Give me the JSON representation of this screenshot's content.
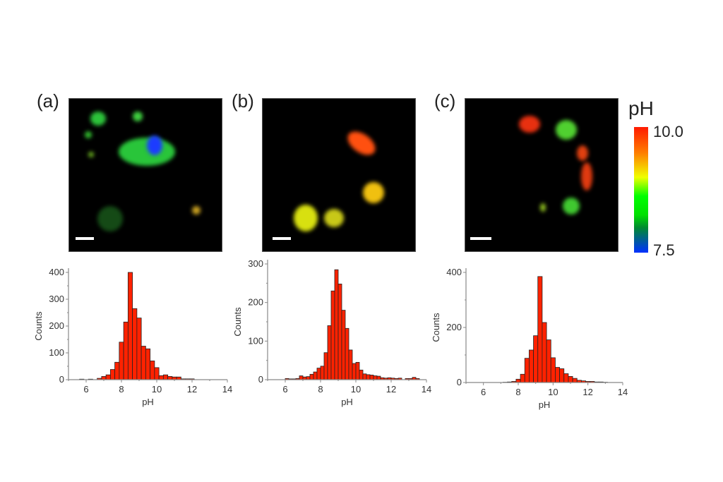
{
  "panels": [
    {
      "label": "(a)"
    },
    {
      "label": "(b)"
    },
    {
      "label": "(c)"
    }
  ],
  "colorbar": {
    "title": "pH",
    "max_label": "10.0",
    "min_label": "7.5",
    "colors": [
      "#ff1a00",
      "#ff7a00",
      "#f0ff00",
      "#00ff00",
      "#008a30",
      "#0030ff"
    ]
  },
  "bar_color": "#ff2200",
  "chart_data": [
    {
      "type": "bar",
      "panel": "(a)",
      "title": "",
      "xlabel": "pH",
      "ylabel": "Counts",
      "xlim": [
        5,
        14
      ],
      "ylim": [
        0,
        420
      ],
      "xticks": [
        6,
        8,
        10,
        12,
        14
      ],
      "yticks": [
        0,
        100,
        200,
        300,
        400
      ],
      "bin_width": 0.25,
      "x": [
        5.75,
        6.25,
        6.75,
        7.0,
        7.25,
        7.5,
        7.75,
        8.0,
        8.25,
        8.5,
        8.75,
        9.0,
        9.25,
        9.5,
        9.75,
        10.0,
        10.25,
        10.5,
        10.75,
        11.0,
        11.25,
        11.5,
        11.75,
        12.0
      ],
      "values": [
        2,
        2,
        5,
        12,
        18,
        38,
        65,
        140,
        215,
        400,
        265,
        230,
        125,
        115,
        70,
        45,
        15,
        18,
        12,
        10,
        10,
        3,
        3,
        3
      ]
    },
    {
      "type": "bar",
      "panel": "(b)",
      "title": "",
      "xlabel": "pH",
      "ylabel": "Counts",
      "xlim": [
        5,
        14
      ],
      "ylim": [
        0,
        300
      ],
      "xticks": [
        6,
        8,
        10,
        12,
        14
      ],
      "yticks": [
        0,
        100,
        200,
        300
      ],
      "bin_width": 0.2,
      "x": [
        6.1,
        6.3,
        6.5,
        6.7,
        6.9,
        7.1,
        7.3,
        7.5,
        7.7,
        7.9,
        8.1,
        8.3,
        8.5,
        8.7,
        8.9,
        9.1,
        9.3,
        9.5,
        9.7,
        9.9,
        10.1,
        10.3,
        10.5,
        10.7,
        10.9,
        11.1,
        11.3,
        11.5,
        11.7,
        11.9,
        12.1,
        12.3,
        12.5,
        12.9,
        13.1,
        13.3,
        13.5
      ],
      "values": [
        3,
        2,
        2,
        3,
        10,
        7,
        8,
        14,
        20,
        30,
        35,
        70,
        140,
        230,
        285,
        248,
        180,
        133,
        77,
        42,
        45,
        25,
        15,
        13,
        12,
        10,
        9,
        5,
        4,
        5,
        4,
        3,
        4,
        3,
        3,
        6,
        3
      ]
    },
    {
      "type": "bar",
      "panel": "(c)",
      "title": "",
      "xlabel": "pH",
      "ylabel": "Counts",
      "xlim": [
        5,
        14
      ],
      "ylim": [
        0,
        400
      ],
      "xticks": [
        6,
        8,
        10,
        12,
        14
      ],
      "yticks": [
        0,
        200,
        400
      ],
      "bin_width": 0.25,
      "x": [
        7.25,
        7.5,
        7.75,
        8.0,
        8.25,
        8.5,
        8.75,
        9.0,
        9.25,
        9.5,
        9.75,
        10.0,
        10.25,
        10.5,
        10.75,
        11.0,
        11.25,
        11.5,
        11.75,
        12.0,
        12.25,
        12.5,
        12.75,
        13.0
      ],
      "values": [
        1,
        2,
        4,
        12,
        30,
        88,
        118,
        170,
        385,
        218,
        155,
        90,
        55,
        50,
        32,
        22,
        15,
        8,
        6,
        4,
        4,
        2,
        2,
        1
      ]
    }
  ]
}
